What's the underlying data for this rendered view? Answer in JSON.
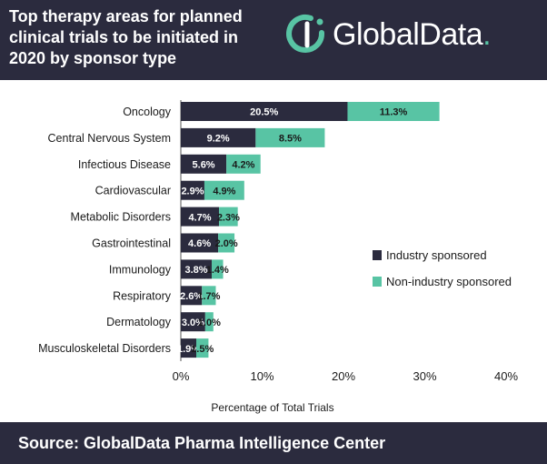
{
  "header": {
    "title_lines": [
      "Top therapy areas for planned",
      "clinical trials to be initiated in",
      "2020 by sponsor type"
    ],
    "logo_text": "GlobalData",
    "logo_dot": "."
  },
  "footer": {
    "source": "Source:  GlobalData Pharma Intelligence Center"
  },
  "colors": {
    "header_bg": "#2b2b3e",
    "industry": "#2b2b3e",
    "non_industry": "#58c4a4",
    "text": "#1a1a1a"
  },
  "chart_data": {
    "type": "bar",
    "orientation": "horizontal",
    "stacked": true,
    "categories": [
      "Oncology",
      "Central Nervous System",
      "Infectious Disease",
      "Cardiovascular",
      "Metabolic Disorders",
      "Gastrointestinal",
      "Immunology",
      "Respiratory",
      "Dermatology",
      "Musculoskeletal Disorders"
    ],
    "series": [
      {
        "name": "Industry sponsored",
        "values": [
          20.5,
          9.2,
          5.6,
          2.9,
          4.7,
          4.6,
          3.8,
          2.6,
          3.0,
          1.9
        ],
        "labels": [
          "20.5%",
          "9.2%",
          "5.6%",
          "2.9%",
          "4.7%",
          "4.6%",
          "3.8%",
          "2.6%",
          "3.0%",
          "1.9%"
        ]
      },
      {
        "name": "Non-industry sponsored",
        "values": [
          11.3,
          8.5,
          4.2,
          4.9,
          2.3,
          2.0,
          1.4,
          1.7,
          1.0,
          1.5
        ],
        "labels": [
          "11.3%",
          "8.5%",
          "4.2%",
          "4.9%",
          "2.3%",
          "2.0%",
          "1.4%",
          "1.7%",
          "1.0%",
          "1.5%"
        ]
      }
    ],
    "xlabel": "Percentage of Total Trials",
    "xlim": [
      0,
      40
    ],
    "xticks": [
      0,
      10,
      20,
      30,
      40
    ],
    "xtick_labels": [
      "0%",
      "10%",
      "20%",
      "30%",
      "40%"
    ],
    "grid": false,
    "legend": "right"
  }
}
